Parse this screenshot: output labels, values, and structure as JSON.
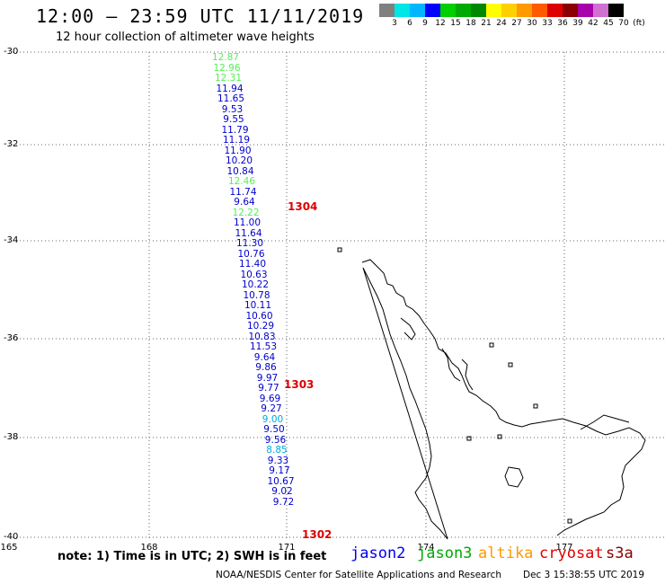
{
  "title": "12:00 – 23:59 UTC 11/11/2019",
  "subtitle": "12 hour collection of altimeter wave heights",
  "legend": {
    "colors": [
      "#808080",
      "#00e5e5",
      "#00b7ff",
      "#0000ff",
      "#00d000",
      "#00aa00",
      "#008800",
      "#ffff00",
      "#ffd000",
      "#ff9a00",
      "#ff5a00",
      "#dd0000",
      "#8b0000",
      "#aa00aa",
      "#d070d0",
      "#000000"
    ],
    "labels": [
      "3",
      "6",
      "9",
      "12",
      "15",
      "18",
      "21",
      "24",
      "27",
      "30",
      "33",
      "36",
      "39",
      "42",
      "45",
      "70",
      "(ft)"
    ]
  },
  "axes": {
    "lat_labels": [
      "-30",
      "-32",
      "-34",
      "-36",
      "-38",
      "-40"
    ],
    "lon_labels": [
      "165",
      "168",
      "171",
      "174",
      "177"
    ]
  },
  "observations": [
    {
      "value": "12.87",
      "color": "#55ee55"
    },
    {
      "value": "12.96",
      "color": "#55ee55"
    },
    {
      "value": "12.31",
      "color": "#55ee55"
    },
    {
      "value": "11.94",
      "color": "#0000cc"
    },
    {
      "value": "11.65",
      "color": "#0000cc"
    },
    {
      "value": "9.53",
      "color": "#0000cc"
    },
    {
      "value": "9.55",
      "color": "#0000cc"
    },
    {
      "value": "11.79",
      "color": "#0000cc"
    },
    {
      "value": "11.19",
      "color": "#0000cc"
    },
    {
      "value": "11.90",
      "color": "#0000cc"
    },
    {
      "value": "10.20",
      "color": "#0000cc"
    },
    {
      "value": "10.84",
      "color": "#0000cc"
    },
    {
      "value": "12.46",
      "color": "#55ee55"
    },
    {
      "value": "11.74",
      "color": "#0000cc"
    },
    {
      "value": "9.64",
      "color": "#0000cc"
    },
    {
      "value": "12.22",
      "color": "#55ee55"
    },
    {
      "value": "11.00",
      "color": "#0000cc"
    },
    {
      "value": "11.64",
      "color": "#0000cc"
    },
    {
      "value": "11.30",
      "color": "#0000cc"
    },
    {
      "value": "10.76",
      "color": "#0000cc"
    },
    {
      "value": "11.40",
      "color": "#0000cc"
    },
    {
      "value": "10.63",
      "color": "#0000cc"
    },
    {
      "value": "10.22",
      "color": "#0000cc"
    },
    {
      "value": "10.78",
      "color": "#0000cc"
    },
    {
      "value": "10.11",
      "color": "#0000cc"
    },
    {
      "value": "10.60",
      "color": "#0000cc"
    },
    {
      "value": "10.29",
      "color": "#0000cc"
    },
    {
      "value": "10.83",
      "color": "#0000cc"
    },
    {
      "value": "11.53",
      "color": "#0000cc"
    },
    {
      "value": "9.64",
      "color": "#0000cc"
    },
    {
      "value": "9.86",
      "color": "#0000cc"
    },
    {
      "value": "9.97",
      "color": "#0000cc"
    },
    {
      "value": "9.77",
      "color": "#0000cc"
    },
    {
      "value": "9.69",
      "color": "#0000cc"
    },
    {
      "value": "9.27",
      "color": "#0000cc"
    },
    {
      "value": "9.00",
      "color": "#00aadd"
    },
    {
      "value": "9.50",
      "color": "#0000cc"
    },
    {
      "value": "9.56",
      "color": "#0000cc"
    },
    {
      "value": "8.85",
      "color": "#00aadd"
    },
    {
      "value": "9.33",
      "color": "#0000cc"
    },
    {
      "value": "9.17",
      "color": "#0000cc"
    },
    {
      "value": "10.67",
      "color": "#0000cc"
    },
    {
      "value": "9.02",
      "color": "#0000cc"
    },
    {
      "value": "9.72",
      "color": "#0000cc"
    }
  ],
  "pass_times": [
    "1304",
    "1303",
    "1302"
  ],
  "note": "note: 1) Time is in UTC; 2) SWH is in feet",
  "satellites": [
    {
      "name": "jason2",
      "color": "#0000ee"
    },
    {
      "name": "jason3",
      "color": "#00aa00"
    },
    {
      "name": "altika",
      "color": "#ff9900"
    },
    {
      "name": "cryosat",
      "color": "#dd0000"
    },
    {
      "name": "s3a",
      "color": "#880000"
    }
  ],
  "credit": "NOAA/NESDIS Center for Satellite Applications and Research",
  "datestamp": "Dec  3 15:38:55 UTC 2019"
}
